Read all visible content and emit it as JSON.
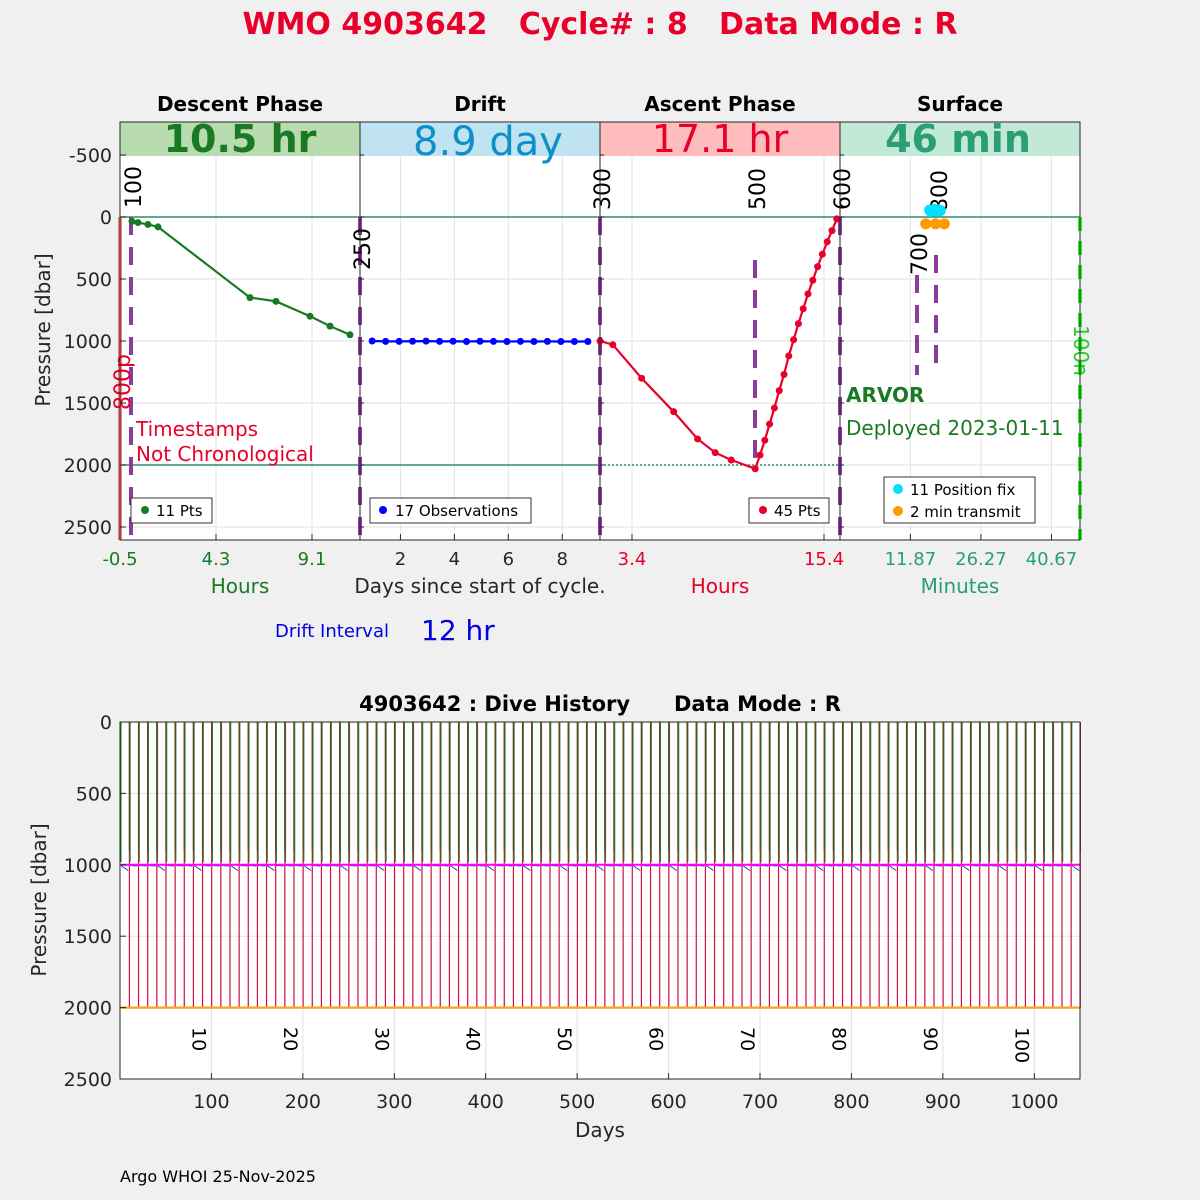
{
  "header": {
    "title": "WMO 4903642   Cycle# : 8   Data Mode : R",
    "title_color": "#e8002a"
  },
  "phases": [
    {
      "name": "Descent Phase",
      "duration": "10.5 hr",
      "band_color": "#b8dcb0",
      "text_color": "#1a7a24"
    },
    {
      "name": "Drift",
      "duration": "8.9 day",
      "band_color": "#bfe3f0",
      "text_color": "#0f8fc8"
    },
    {
      "name": "Ascent Phase",
      "duration": "17.1 hr",
      "band_color": "#ffbcbc",
      "text_color": "#e8002a"
    },
    {
      "name": "Surface",
      "duration": "46 min",
      "band_color": "#c2e8d8",
      "text_color": "#2a9e74"
    }
  ],
  "top_axes": {
    "ylabel": "Pressure [dbar]",
    "yticks": [
      "-500",
      "0",
      "500",
      "1000",
      "1500",
      "2000",
      "2500"
    ],
    "xlabel_descent": "Hours",
    "xlabel_drift": "Days since start of cycle.",
    "xlabel_ascent": "Hours",
    "xlabel_surface": "Minutes",
    "xticks_descent": [
      "-0.5",
      "4.3",
      "9.1"
    ],
    "xticks_drift": [
      "2",
      "4",
      "6",
      "8"
    ],
    "xticks_ascent": [
      "3.4",
      "15.4"
    ],
    "xticks_surface": [
      "11.87",
      "26.27",
      "40.67"
    ]
  },
  "markers": {
    "m100": "100",
    "m250": "250",
    "m300": "300",
    "m500": "500",
    "m600": "600",
    "m700": "700",
    "m800": "800",
    "m800p": "800p",
    "m100n": "100n"
  },
  "annotations": {
    "timestamps_line1": "Timestamps",
    "timestamps_line2": "Not Chronological",
    "float_type": "ARVOR",
    "deployed": "Deployed 2023-01-11",
    "drift_interval_label": "Drift Interval",
    "drift_interval_value": "12 hr"
  },
  "legends": {
    "descent": "11 Pts",
    "drift": "17 Observations",
    "ascent": "45 Pts",
    "surface_fix": "11 Position fix",
    "surface_transmit": "2 min transmit"
  },
  "history": {
    "title": "4903642 : Dive History      Data Mode : R",
    "ylabel": "Pressure [dbar]",
    "xlabel": "Days",
    "yticks": [
      "0",
      "500",
      "1000",
      "1500",
      "2000",
      "2500"
    ],
    "xticks": [
      "100",
      "200",
      "300",
      "400",
      "500",
      "600",
      "700",
      "800",
      "900",
      "1000"
    ],
    "cycle_labels": [
      "10",
      "20",
      "30",
      "40",
      "50",
      "60",
      "70",
      "80",
      "90",
      "100"
    ]
  },
  "footer": {
    "credit": "Argo WHOI 25-Nov-2025"
  },
  "chart_data": [
    {
      "type": "line",
      "title": "Descent Phase",
      "xlabel": "Hours",
      "ylabel": "Pressure [dbar]",
      "xlim": [
        -0.5,
        11.5
      ],
      "ylim": [
        2600,
        -750
      ],
      "series": [
        {
          "name": "11 Pts",
          "color": "#1a7a24",
          "x": [
            0.1,
            0.4,
            0.9,
            1.4,
            6.0,
            7.3,
            9.0,
            10.0,
            11.0
          ],
          "y": [
            35,
            45,
            60,
            80,
            650,
            680,
            800,
            880,
            950
          ]
        }
      ]
    },
    {
      "type": "line",
      "title": "Drift",
      "xlabel": "Days since start of cycle.",
      "ylabel": "Pressure [dbar]",
      "xlim": [
        0.5,
        9.4
      ],
      "ylim": [
        2600,
        -750
      ],
      "series": [
        {
          "name": "17 Observations",
          "color": "#0000ff",
          "x": [
            0.95,
            1.45,
            1.95,
            2.45,
            2.95,
            3.45,
            3.95,
            4.45,
            4.95,
            5.45,
            5.95,
            6.45,
            6.95,
            7.45,
            7.95,
            8.45,
            8.95
          ],
          "y": [
            1000,
            1003,
            1003,
            1002,
            1001,
            1003,
            1002,
            1004,
            1002,
            1003,
            1004,
            1003,
            1004,
            1003,
            1004,
            1004,
            1004
          ]
        }
      ]
    },
    {
      "type": "line",
      "title": "Ascent Phase",
      "xlabel": "Hours",
      "ylabel": "Pressure [dbar]",
      "xlim": [
        1.4,
        16.4
      ],
      "ylim": [
        2600,
        -750
      ],
      "series": [
        {
          "name": "45 Pts",
          "color": "#e8002a",
          "x": [
            1.4,
            2.2,
            4.0,
            6.0,
            7.5,
            8.6,
            9.6,
            11.1,
            11.4,
            11.7,
            12.0,
            12.3,
            12.6,
            12.9,
            13.2,
            13.5,
            13.8,
            14.1,
            14.4,
            14.7,
            15.0,
            15.3,
            15.6,
            15.9,
            16.2
          ],
          "y": [
            1000,
            1030,
            1300,
            1570,
            1790,
            1900,
            1960,
            2030,
            1920,
            1800,
            1670,
            1540,
            1400,
            1270,
            1120,
            990,
            860,
            740,
            620,
            510,
            400,
            300,
            200,
            110,
            15
          ]
        }
      ]
    },
    {
      "type": "scatter",
      "title": "Surface",
      "xlabel": "Minutes",
      "ylabel": "Pressure [dbar]",
      "xlim": [
        -2.5,
        46.5
      ],
      "ylim": [
        2600,
        -750
      ],
      "series": [
        {
          "name": "11 Position fix",
          "color": "#00e0ff",
          "x": [
            15.8,
            16.2,
            16.6,
            17.0,
            17.4,
            17.8,
            16.0,
            16.8,
            17.2,
            17.6,
            18.0
          ],
          "y": [
            -55,
            -50,
            -52,
            -48,
            -55,
            -50,
            -45,
            -60,
            -58,
            -47,
            -52
          ]
        },
        {
          "name": "2 min transmit",
          "color": "#ff9a00",
          "x": [
            15.0,
            17.0,
            18.8
          ],
          "y": [
            55,
            55,
            55
          ]
        }
      ]
    },
    {
      "type": "line",
      "title": "4903642 : Dive History      Data Mode : R",
      "xlabel": "Days",
      "ylabel": "Pressure [dbar]",
      "xlim": [
        0,
        1050
      ],
      "ylim": [
        2500,
        0
      ],
      "notes": "vertical profile lines every 10 days (cycles 1-105), parking depth ~1000 dbar, profile depth ~2000 dbar",
      "cycle_interval_days": 10,
      "park_pressure": 1000,
      "profile_pressure": 2000,
      "cycle_count": 105
    }
  ]
}
